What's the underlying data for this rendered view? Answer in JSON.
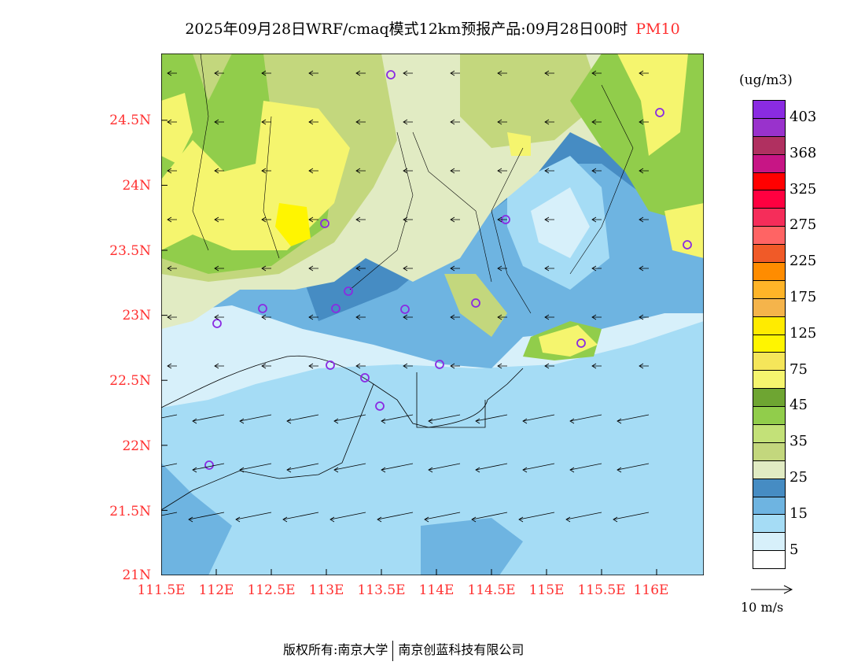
{
  "title": {
    "main": "2025年09月28日WRF/cmaq模式12km预报产品:09月28日00时",
    "species": "PM10"
  },
  "axes": {
    "lat_labels": [
      "24.5N",
      "24N",
      "23.5N",
      "23N",
      "22.5N",
      "22N",
      "21.5N",
      "21N"
    ],
    "lon_labels": [
      "111.5E",
      "112E",
      "112.5E",
      "113E",
      "113.5E",
      "114E",
      "114.5E",
      "115E",
      "115.5E",
      "116E"
    ]
  },
  "colorbar": {
    "unit": "(ug/m3)",
    "labels": [
      "403",
      "368",
      "325",
      "275",
      "225",
      "175",
      "125",
      "75",
      "45",
      "35",
      "25",
      "15",
      "5"
    ],
    "colors": [
      "#8a2be2",
      "#9932cc",
      "#b03060",
      "#c71585",
      "#ff0000",
      "#ff0040",
      "#f52d5a",
      "#ff6464",
      "#f05a28",
      "#ff8c00",
      "#ffb428",
      "#f5b44b",
      "#ffeb00",
      "#fff500",
      "#f5e65a",
      "#f5f56e",
      "#6ea532",
      "#91cd4b",
      "#c3e178",
      "#c3d77d",
      "#e1ebc3",
      "#468cc3",
      "#6eb4e1",
      "#a5dcf5",
      "#d7f0fa",
      "#ffffff"
    ]
  },
  "wind_reference": {
    "label": "10 m/s"
  },
  "footer": {
    "left": "版权所有:南京大学",
    "right": "南京创蓝科技有限公司"
  }
}
